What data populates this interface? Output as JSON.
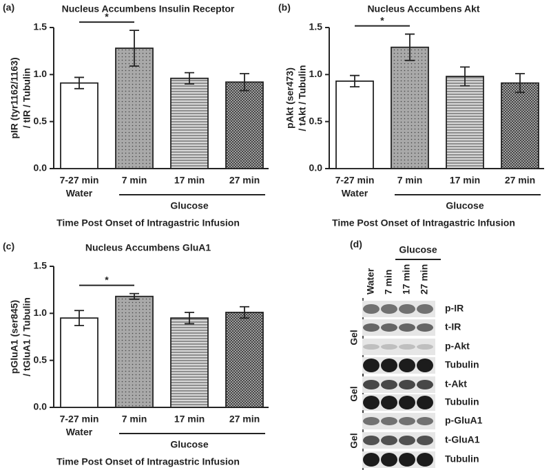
{
  "chart_data": [
    {
      "type": "bar",
      "panel_label": "(a)",
      "title": "Nucleus Accumbens Insulin Receptor",
      "ylabel": [
        "pIR (tyr1162/1163)",
        "/ tIR / Tubulin"
      ],
      "xlabel": "Time Post Onset of Intragastric Infusion",
      "categories": [
        "7-27 min",
        "7 min",
        "17 min",
        "27 min"
      ],
      "groups": [
        {
          "label": "Water",
          "span": 1
        },
        {
          "label": "Glucose",
          "span": 3
        }
      ],
      "values": [
        0.91,
        1.28,
        0.96,
        0.92
      ],
      "errors": [
        0.06,
        0.19,
        0.06,
        0.09
      ],
      "fills": [
        "white",
        "dots",
        "horizontal-stripes",
        "crosshatch"
      ],
      "color": "#222222",
      "ylim": [
        0,
        1.5
      ],
      "yticks": [
        {
          "value": 0,
          "label": "0.0"
        },
        {
          "value": 0.5,
          "label": "0.5"
        },
        {
          "value": 1,
          "label": "1.0"
        },
        {
          "value": 1.5,
          "label": "1.5"
        }
      ],
      "significance": [
        {
          "label": "*",
          "between": [
            0,
            1
          ]
        }
      ]
    },
    {
      "type": "bar",
      "panel_label": "(b)",
      "title": "Nucleus Accumbens Akt",
      "ylabel": [
        "pAkt (ser473)",
        "/ tAkt / Tubulin"
      ],
      "xlabel": "Time Post Onset of Intragastric Infusion",
      "categories": [
        "7-27 min",
        "7 min",
        "17 min",
        "27 min"
      ],
      "groups": [
        {
          "label": "Water",
          "span": 1
        },
        {
          "label": "Glucose",
          "span": 3
        }
      ],
      "values": [
        0.93,
        1.29,
        0.98,
        0.91
      ],
      "errors": [
        0.06,
        0.14,
        0.1,
        0.1
      ],
      "fills": [
        "white",
        "dots",
        "horizontal-stripes",
        "crosshatch"
      ],
      "color": "#222222",
      "ylim": [
        0,
        1.5
      ],
      "yticks": [
        {
          "value": 0,
          "label": "0.0"
        },
        {
          "value": 0.5,
          "label": "0.5"
        },
        {
          "value": 1,
          "label": "1.0"
        },
        {
          "value": 1.5,
          "label": "1.5"
        }
      ],
      "significance": [
        {
          "label": "*",
          "between": [
            0,
            1
          ]
        }
      ]
    },
    {
      "type": "bar",
      "panel_label": "(c)",
      "title": "Nucleus Accumbens GluA1",
      "ylabel": [
        "pGluA1 (ser845)",
        "/ tGluA1 / Tubulin"
      ],
      "xlabel": "Time Post Onset of Intragastric Infusion",
      "categories": [
        "7-27 min",
        "7 min",
        "17 min",
        "27 min"
      ],
      "groups": [
        {
          "label": "Water",
          "span": 1
        },
        {
          "label": "Glucose",
          "span": 3
        }
      ],
      "values": [
        0.95,
        1.18,
        0.95,
        1.01
      ],
      "errors": [
        0.08,
        0.03,
        0.06,
        0.06
      ],
      "fills": [
        "white",
        "dots",
        "horizontal-stripes",
        "crosshatch"
      ],
      "color": "#222222",
      "ylim": [
        0,
        1.5
      ],
      "yticks": [
        {
          "value": 0,
          "label": "0.0"
        },
        {
          "value": 0.5,
          "label": "0.5"
        },
        {
          "value": 1,
          "label": "1.0"
        },
        {
          "value": 1.5,
          "label": "1.5"
        }
      ],
      "significance": [
        {
          "label": "*",
          "between": [
            0,
            1
          ]
        }
      ]
    }
  ],
  "blot": {
    "panel_label": "(d)",
    "group_label": "Glucose",
    "lanes": [
      "Water",
      "7 min",
      "17 min",
      "27 min"
    ],
    "gels": [
      {
        "label": "Gel",
        "rows": [
          "p-IR",
          "t-IR",
          "p-Akt",
          "Tubulin"
        ]
      },
      {
        "label": "Gel",
        "rows": [
          "t-Akt",
          "Tubulin"
        ]
      },
      {
        "label": "Gel",
        "rows": [
          "p-GluA1",
          "t-GluA1",
          "Tubulin"
        ]
      }
    ]
  }
}
